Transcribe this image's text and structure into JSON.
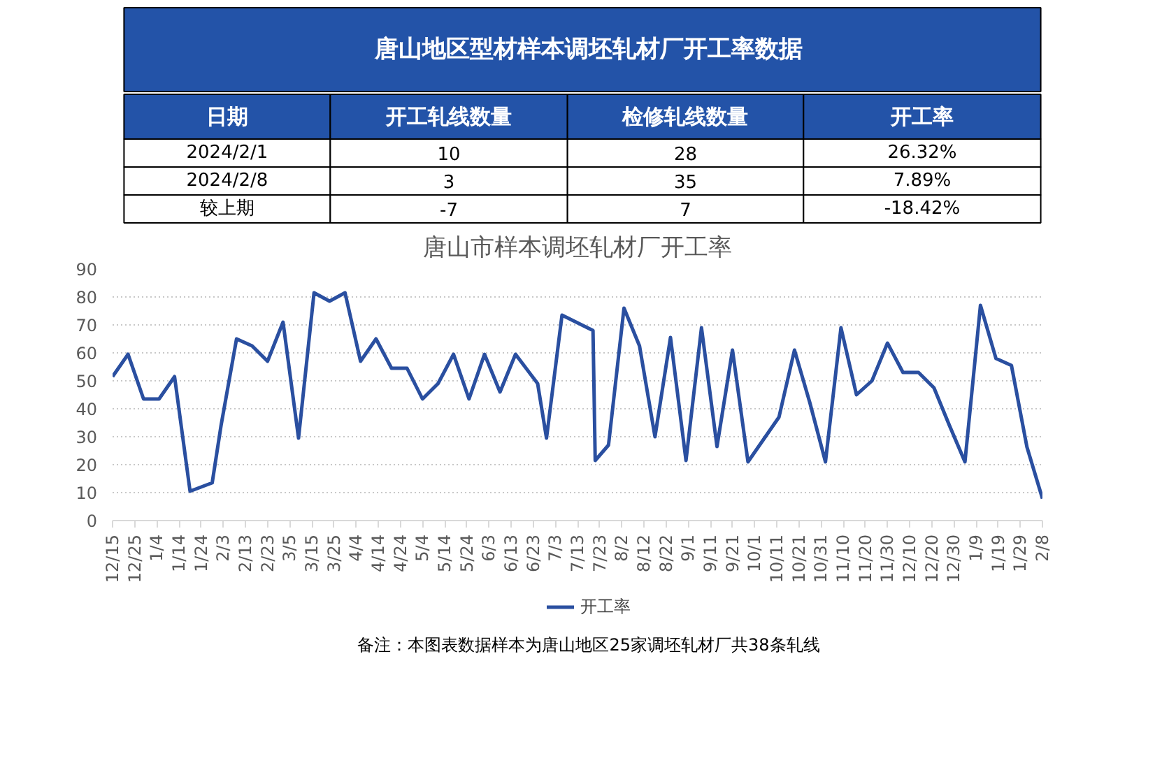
{
  "chart_data": [
    {
      "type": "other",
      "title": "唐山地区型材样本调坯轧材厂开工率数据",
      "color": "#2353a8",
      "annotations": [
        "日期",
        "开工轧线数量",
        "检修轧线数量",
        "开工率",
        "2024/2/1",
        "10",
        "28",
        "26.32%",
        "2024/2/8",
        "3",
        "35",
        "7.89%",
        "较上期",
        "-7",
        "7",
        "-18.42%"
      ]
    },
    {
      "type": "line",
      "title": "唐山市样本调坯轧材厂开工率",
      "x": [
        "2022-12-15",
        "2022-12-22",
        "2022-12-29",
        "2023-01-05",
        "2023-01-12",
        "2023-01-19",
        "2023-01-29",
        "2023-02-02",
        "2023-02-09",
        "2023-02-16",
        "2023-02-23",
        "2023-03-02",
        "2023-03-09",
        "2023-03-16",
        "2023-03-23",
        "2023-03-30",
        "2023-04-06",
        "2023-04-13",
        "2023-04-20",
        "2023-04-27",
        "2023-05-04",
        "2023-05-11",
        "2023-05-18",
        "2023-05-25",
        "2023-06-01",
        "2023-06-08",
        "2023-06-15",
        "2023-06-25",
        "2023-06-29",
        "2023-07-06",
        "2023-07-20",
        "2023-07-21",
        "2023-07-27",
        "2023-08-03",
        "2023-08-10",
        "2023-08-17",
        "2023-08-24",
        "2023-08-31",
        "2023-09-07",
        "2023-09-14",
        "2023-09-21",
        "2023-09-28",
        "2023-10-05",
        "2023-10-12",
        "2023-10-19",
        "2023-10-26",
        "2023-11-02",
        "2023-11-09",
        "2023-11-16",
        "2023-11-23",
        "2023-11-30",
        "2023-12-07",
        "2023-12-14",
        "2023-12-21",
        "2023-12-28",
        "2024-01-04",
        "2024-01-11",
        "2024-01-18",
        "2024-01-25",
        "2024-02-01",
        "2024-02-08"
      ],
      "series": [
        {
          "name": "开工率",
          "color": "#2a4fa0",
          "values": [
            51.5,
            59.5,
            43.5,
            43.5,
            51.5,
            10.5,
            13.5,
            34,
            65,
            62.5,
            57,
            71,
            29.5,
            81.5,
            78.5,
            81.5,
            57,
            65,
            54.5,
            54.5,
            43.5,
            49,
            59.5,
            43.5,
            59.5,
            46,
            59.5,
            49,
            29.5,
            73.5,
            68,
            21.5,
            27,
            76,
            62.5,
            30,
            65.5,
            21.5,
            69,
            26.5,
            61,
            21,
            29,
            37,
            61,
            42,
            21,
            69,
            45,
            50,
            63.5,
            53,
            53,
            47.5,
            34,
            21,
            77,
            58,
            55.5,
            26.32,
            7.89
          ]
        }
      ],
      "xlim": [
        "2022-12-15",
        "2024-02-08"
      ],
      "xticks": [
        {
          "value": "2022-12-15",
          "label": "12/15"
        },
        {
          "value": "2022-12-25",
          "label": "12/25"
        },
        {
          "value": "2023-01-04",
          "label": "1/4"
        },
        {
          "value": "2023-01-14",
          "label": "1/14"
        },
        {
          "value": "2023-01-24",
          "label": "1/24"
        },
        {
          "value": "2023-02-03",
          "label": "2/3"
        },
        {
          "value": "2023-02-13",
          "label": "2/13"
        },
        {
          "value": "2023-02-23",
          "label": "2/23"
        },
        {
          "value": "2023-03-05",
          "label": "3/5"
        },
        {
          "value": "2023-03-15",
          "label": "3/15"
        },
        {
          "value": "2023-03-25",
          "label": "3/25"
        },
        {
          "value": "2023-04-04",
          "label": "4/4"
        },
        {
          "value": "2023-04-14",
          "label": "4/14"
        },
        {
          "value": "2023-04-24",
          "label": "4/24"
        },
        {
          "value": "2023-05-04",
          "label": "5/4"
        },
        {
          "value": "2023-05-14",
          "label": "5/14"
        },
        {
          "value": "2023-05-24",
          "label": "5/24"
        },
        {
          "value": "2023-06-03",
          "label": "6/3"
        },
        {
          "value": "2023-06-13",
          "label": "6/13"
        },
        {
          "value": "2023-06-23",
          "label": "6/23"
        },
        {
          "value": "2023-07-03",
          "label": "7/3"
        },
        {
          "value": "2023-07-13",
          "label": "7/13"
        },
        {
          "value": "2023-07-23",
          "label": "7/23"
        },
        {
          "value": "2023-08-02",
          "label": "8/2"
        },
        {
          "value": "2023-08-12",
          "label": "8/12"
        },
        {
          "value": "2023-08-22",
          "label": "8/22"
        },
        {
          "value": "2023-09-01",
          "label": "9/1"
        },
        {
          "value": "2023-09-11",
          "label": "9/11"
        },
        {
          "value": "2023-09-21",
          "label": "9/21"
        },
        {
          "value": "2023-10-01",
          "label": "10/1"
        },
        {
          "value": "2023-10-11",
          "label": "10/11"
        },
        {
          "value": "2023-10-21",
          "label": "10/21"
        },
        {
          "value": "2023-10-31",
          "label": "10/31"
        },
        {
          "value": "2023-11-10",
          "label": "11/10"
        },
        {
          "value": "2023-11-20",
          "label": "11/20"
        },
        {
          "value": "2023-11-30",
          "label": "11/30"
        },
        {
          "value": "2023-12-10",
          "label": "12/10"
        },
        {
          "value": "2023-12-20",
          "label": "12/20"
        },
        {
          "value": "2023-12-30",
          "label": "12/30"
        },
        {
          "value": "2024-01-09",
          "label": "1/9"
        },
        {
          "value": "2024-01-19",
          "label": "1/19"
        },
        {
          "value": "2024-01-29",
          "label": "1/29"
        },
        {
          "value": "2024-02-08",
          "label": "2/8"
        }
      ],
      "ylim": [
        0,
        90
      ],
      "yticks": [
        0,
        10,
        20,
        30,
        40,
        50,
        60,
        70,
        80,
        90
      ],
      "grid": "y",
      "legend": "bottom",
      "marker": "none",
      "line_style": "solid",
      "annotations": [
        "备注：本图表数据样本为唐山地区25家调坯轧材厂共38条轧线"
      ]
    }
  ]
}
